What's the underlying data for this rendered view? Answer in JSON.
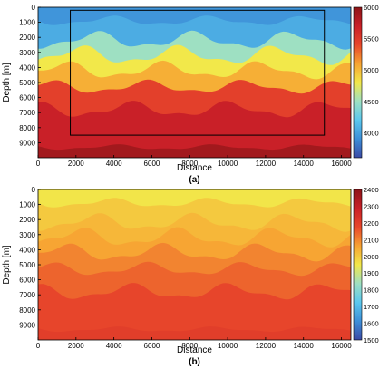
{
  "chart_data": [
    {
      "type": "heatmap",
      "panel_label": "(a)",
      "xlabel": "Distance",
      "ylabel": "Depth [m]",
      "xlim": [
        0,
        16500
      ],
      "ylim": [
        0,
        10000
      ],
      "xticks": [
        0,
        2000,
        4000,
        6000,
        8000,
        10000,
        12000,
        14000,
        16000
      ],
      "yticks": [
        0,
        1000,
        2000,
        3000,
        4000,
        5000,
        6000,
        7000,
        8000,
        9000
      ],
      "colorbar": {
        "min": 3600,
        "max": 6000,
        "ticks": [
          4000,
          4500,
          5000,
          5500,
          6000
        ]
      },
      "colors": [
        "#3b4aa5",
        "#3d8fd8",
        "#5bc8ee",
        "#9ee0c2",
        "#f2e84a",
        "#f7a332",
        "#e8472b",
        "#c92028",
        "#8e1518"
      ],
      "layers": [
        {
          "base_depth": 900,
          "amp": 350,
          "value": 4050
        },
        {
          "base_depth": 2200,
          "amp": 650,
          "value": 4500
        },
        {
          "base_depth": 3200,
          "amp": 700,
          "value": 4800
        },
        {
          "base_depth": 4200,
          "amp": 650,
          "value": 5050
        },
        {
          "base_depth": 5300,
          "amp": 500,
          "value": 5450
        },
        {
          "base_depth": 6800,
          "amp": 600,
          "value": 5700
        },
        {
          "base_depth": 9300,
          "amp": 200,
          "value": 5900
        },
        {
          "base_depth": 10000,
          "amp": 0,
          "value": 6000
        }
      ],
      "box": {
        "x": [
          1700,
          15100
        ],
        "y": [
          200,
          8500
        ]
      }
    },
    {
      "type": "heatmap",
      "panel_label": "(b)",
      "xlabel": "Distance",
      "ylabel": "Depth [m]",
      "xlim": [
        0,
        16500
      ],
      "ylim": [
        0,
        10000
      ],
      "xticks": [
        0,
        2000,
        4000,
        6000,
        8000,
        10000,
        12000,
        14000,
        16000
      ],
      "yticks": [
        0,
        1000,
        2000,
        3000,
        4000,
        5000,
        6000,
        7000,
        8000,
        9000
      ],
      "colorbar": {
        "min": 1500,
        "max": 2400,
        "ticks": [
          1500,
          1600,
          1700,
          1800,
          1900,
          2000,
          2100,
          2200,
          2300,
          2400
        ]
      },
      "colors": [
        "#3b4aa5",
        "#3d8fd8",
        "#5bc8ee",
        "#9ee0c2",
        "#f2e84a",
        "#f7a332",
        "#e8472b",
        "#c92028",
        "#8e1518"
      ],
      "layers": [
        {
          "base_depth": 900,
          "amp": 350,
          "value": 2000
        },
        {
          "base_depth": 2200,
          "amp": 650,
          "value": 2030
        },
        {
          "base_depth": 3200,
          "amp": 700,
          "value": 2060
        },
        {
          "base_depth": 4200,
          "amp": 650,
          "value": 2100
        },
        {
          "base_depth": 5300,
          "amp": 500,
          "value": 2140
        },
        {
          "base_depth": 6800,
          "amp": 600,
          "value": 2180
        },
        {
          "base_depth": 9300,
          "amp": 200,
          "value": 2200
        },
        {
          "base_depth": 10000,
          "amp": 0,
          "value": 2220
        }
      ]
    }
  ]
}
